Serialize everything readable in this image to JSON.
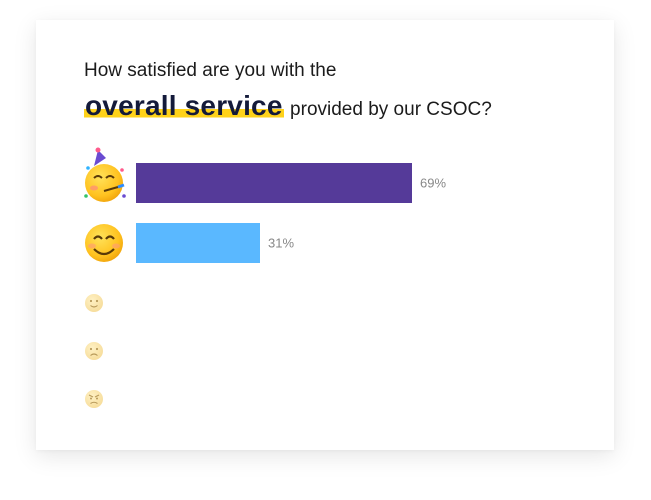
{
  "question": {
    "line1": "How satisfied are you with the",
    "highlight": "overall service",
    "rest": "provided by our CSOC?"
  },
  "colors": {
    "highlight": "#ffd21a",
    "bar_purple": "#553a99",
    "bar_blue": "#5ab8ff",
    "label_gray": "#888888"
  },
  "chart_data": {
    "type": "bar",
    "orientation": "horizontal",
    "categories": [
      "party-face-emoji",
      "smiling-face-emoji",
      "slightly-smiling-face-emoji",
      "frowning-face-emoji",
      "angry-face-emoji"
    ],
    "values": [
      69,
      31,
      0,
      0,
      0
    ],
    "value_labels": [
      "69%",
      "31%",
      "",
      "",
      ""
    ],
    "value_unit": "%",
    "xlim": [
      0,
      100
    ],
    "grid": false,
    "title": "",
    "xlabel": "",
    "ylabel": ""
  }
}
